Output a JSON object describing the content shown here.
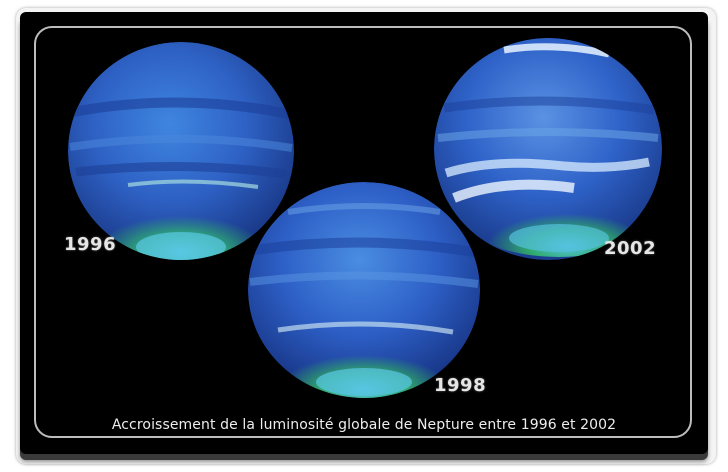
{
  "image": {
    "caption": "Accroissement de la luminosité globale de Nepture entre 1996 et 2002",
    "planets": [
      {
        "year": "1996",
        "icon": "neptune-planet-icon"
      },
      {
        "year": "1998",
        "icon": "neptune-planet-icon"
      },
      {
        "year": "2002",
        "icon": "neptune-planet-icon"
      }
    ]
  },
  "colors": {
    "background": "#000000",
    "frame": "#bdbdbd",
    "text": "#e6e6e6",
    "planet_blue": "#2f63c9",
    "planet_cyan": "#4fb7d8",
    "planet_green": "#2fa86a"
  }
}
